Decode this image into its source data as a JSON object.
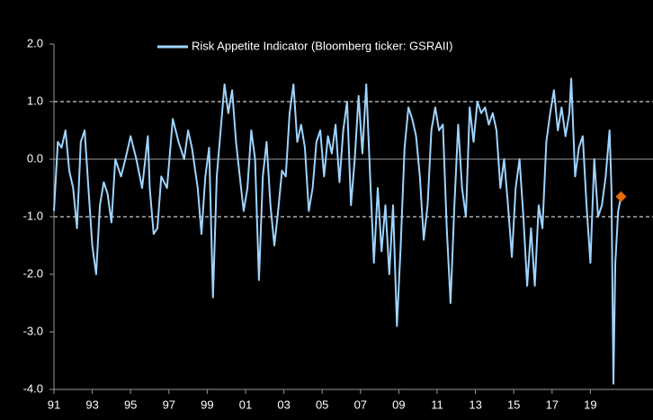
{
  "chart_data": {
    "type": "line",
    "series": [
      {
        "name": "Risk Appetite Indicator (Bloomberg ticker: GSRAII)",
        "color": "#9fd4ff",
        "x": [
          1991.0,
          1991.2,
          1991.4,
          1991.6,
          1991.8,
          1992.0,
          1992.2,
          1992.4,
          1992.6,
          1992.8,
          1993.0,
          1993.2,
          1993.4,
          1993.6,
          1993.8,
          1994.0,
          1994.2,
          1994.5,
          1994.8,
          1995.0,
          1995.3,
          1995.6,
          1995.9,
          1996.0,
          1996.2,
          1996.4,
          1996.6,
          1996.9,
          1997.2,
          1997.5,
          1997.8,
          1998.0,
          1998.2,
          1998.5,
          1998.7,
          1998.9,
          1999.1,
          1999.3,
          1999.5,
          1999.7,
          1999.9,
          2000.1,
          2000.3,
          2000.5,
          2000.7,
          2000.9,
          2001.1,
          2001.3,
          2001.5,
          2001.7,
          2001.9,
          2002.1,
          2002.3,
          2002.5,
          2002.7,
          2002.9,
          2003.1,
          2003.3,
          2003.5,
          2003.7,
          2003.9,
          2004.1,
          2004.3,
          2004.5,
          2004.7,
          2004.9,
          2005.1,
          2005.3,
          2005.5,
          2005.7,
          2005.9,
          2006.1,
          2006.3,
          2006.5,
          2006.7,
          2006.9,
          2007.1,
          2007.3,
          2007.5,
          2007.7,
          2007.9,
          2008.1,
          2008.3,
          2008.5,
          2008.7,
          2008.9,
          2009.1,
          2009.3,
          2009.5,
          2009.7,
          2009.9,
          2010.1,
          2010.3,
          2010.5,
          2010.7,
          2010.9,
          2011.1,
          2011.3,
          2011.5,
          2011.7,
          2011.9,
          2012.1,
          2012.3,
          2012.5,
          2012.7,
          2012.9,
          2013.1,
          2013.3,
          2013.5,
          2013.7,
          2013.9,
          2014.1,
          2014.3,
          2014.5,
          2014.7,
          2014.9,
          2015.1,
          2015.3,
          2015.5,
          2015.7,
          2015.9,
          2016.1,
          2016.3,
          2016.5,
          2016.7,
          2016.9,
          2017.1,
          2017.3,
          2017.5,
          2017.7,
          2017.9,
          2018.0,
          2018.2,
          2018.4,
          2018.6,
          2018.8,
          2019.0,
          2019.2,
          2019.4,
          2019.6,
          2019.8,
          2020.0,
          2020.1,
          2020.2,
          2020.3,
          2020.45,
          2020.6
        ],
        "values": [
          -0.9,
          0.3,
          0.2,
          0.5,
          -0.2,
          -0.5,
          -1.2,
          0.3,
          0.5,
          -0.5,
          -1.5,
          -2.0,
          -0.8,
          -0.4,
          -0.6,
          -1.1,
          0.0,
          -0.3,
          0.1,
          0.4,
          0.0,
          -0.5,
          0.4,
          -0.5,
          -1.3,
          -1.2,
          -0.3,
          -0.5,
          0.7,
          0.3,
          0.0,
          0.5,
          0.2,
          -0.5,
          -1.3,
          -0.3,
          0.2,
          -2.4,
          -0.3,
          0.5,
          1.3,
          0.8,
          1.2,
          0.3,
          -0.3,
          -0.9,
          -0.5,
          0.5,
          0.0,
          -2.1,
          -0.3,
          0.3,
          -0.8,
          -1.5,
          -0.9,
          -0.2,
          -0.3,
          0.8,
          1.3,
          0.3,
          0.6,
          0.2,
          -0.9,
          -0.5,
          0.3,
          0.5,
          -0.3,
          0.4,
          0.1,
          0.6,
          -0.4,
          0.5,
          1.0,
          -0.8,
          0.0,
          1.1,
          0.1,
          1.3,
          -0.3,
          -1.8,
          -0.5,
          -1.6,
          -0.8,
          -2.0,
          -0.8,
          -2.9,
          -1.5,
          0.2,
          0.9,
          0.7,
          0.4,
          -0.3,
          -1.4,
          -0.8,
          0.5,
          0.9,
          0.5,
          0.6,
          -1.2,
          -2.5,
          -0.8,
          0.6,
          -0.5,
          -1.0,
          0.9,
          0.3,
          1.0,
          0.8,
          0.9,
          0.6,
          0.8,
          0.5,
          -0.5,
          0.0,
          -0.8,
          -1.7,
          -0.5,
          0.0,
          -1.0,
          -2.2,
          -1.2,
          -2.2,
          -0.8,
          -1.2,
          0.3,
          0.8,
          1.2,
          0.5,
          0.9,
          0.4,
          0.8,
          1.4,
          -0.3,
          0.2,
          0.4,
          -0.8,
          -1.8,
          0.0,
          -1.0,
          -0.8,
          -0.3,
          0.5,
          -0.5,
          -3.9,
          -1.8,
          -0.9,
          -0.65
        ]
      }
    ],
    "marker": {
      "x": 2020.6,
      "value": -0.65,
      "color": "#e46c0a"
    },
    "xlim": [
      1991,
      2021
    ],
    "xticks": [
      {
        "value": 1991,
        "label": "91"
      },
      {
        "value": 1993,
        "label": "93"
      },
      {
        "value": 1995,
        "label": "95"
      },
      {
        "value": 1997,
        "label": "97"
      },
      {
        "value": 1999,
        "label": "99"
      },
      {
        "value": 2001,
        "label": "01"
      },
      {
        "value": 2003,
        "label": "03"
      },
      {
        "value": 2005,
        "label": "05"
      },
      {
        "value": 2007,
        "label": "07"
      },
      {
        "value": 2009,
        "label": "09"
      },
      {
        "value": 2011,
        "label": "11"
      },
      {
        "value": 2013,
        "label": "13"
      },
      {
        "value": 2015,
        "label": "15"
      },
      {
        "value": 2017,
        "label": "17"
      },
      {
        "value": 2019,
        "label": "19"
      }
    ],
    "ylim": [
      -4,
      2
    ],
    "yticks": [
      {
        "value": 2,
        "label": "2.0"
      },
      {
        "value": 1,
        "label": "1.0"
      },
      {
        "value": 0,
        "label": "0.0"
      },
      {
        "value": -1,
        "label": "-1.0"
      },
      {
        "value": -2,
        "label": "-2.0"
      },
      {
        "value": -3,
        "label": "-3.0"
      },
      {
        "value": -4,
        "label": "-4.0"
      }
    ],
    "dashed_lines": [
      1,
      -1
    ]
  }
}
